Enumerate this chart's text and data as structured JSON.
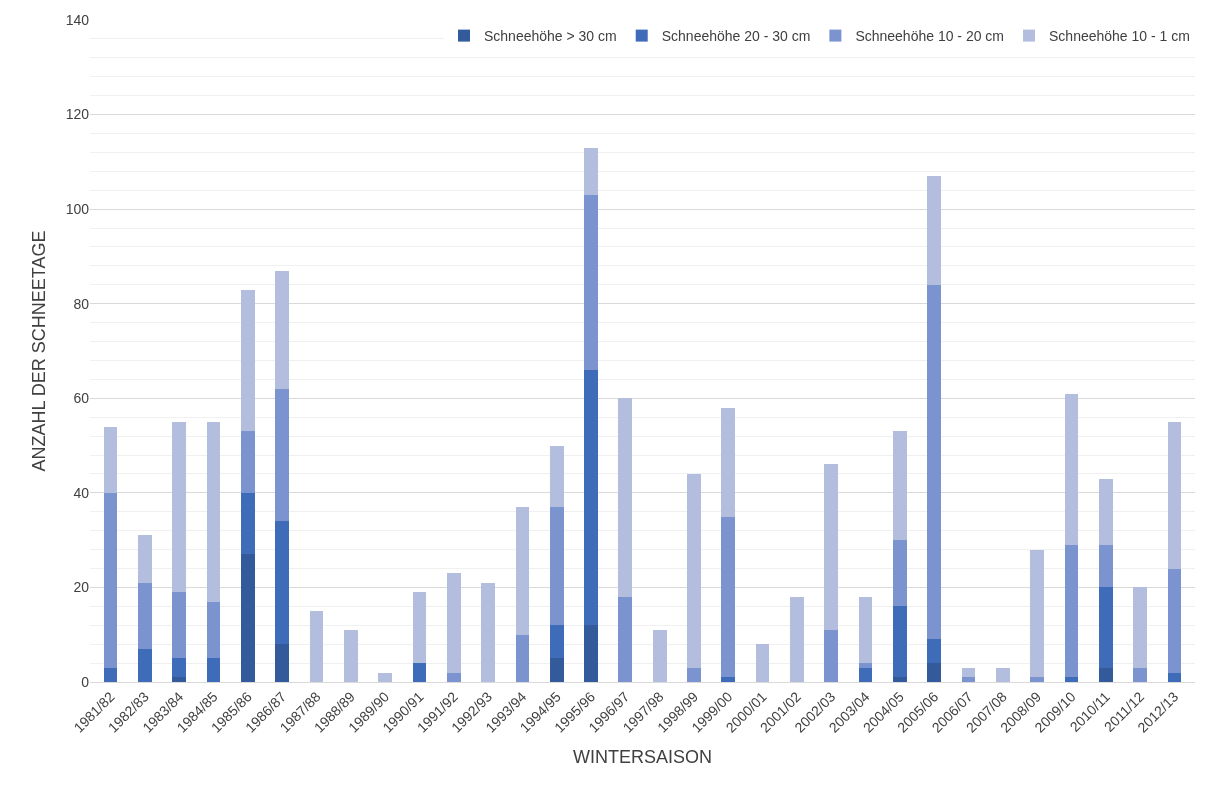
{
  "chart_data": {
    "type": "bar",
    "stacked": true,
    "xlabel": "WINTERSAISON",
    "ylabel": "ANZAHL DER SCHNEETAGE",
    "categories": [
      "1981/82",
      "1982/83",
      "1983/84",
      "1984/85",
      "1985/86",
      "1986/87",
      "1987/88",
      "1988/89",
      "1989/90",
      "1990/91",
      "1991/92",
      "1992/93",
      "1993/94",
      "1994/95",
      "1995/96",
      "1996/97",
      "1997/98",
      "1998/99",
      "1999/00",
      "2000/01",
      "2001/02",
      "2002/03",
      "2003/04",
      "2004/05",
      "2005/06",
      "2006/07",
      "2007/08",
      "2008/09",
      "2009/10",
      "2010/11",
      "2011/12",
      "2012/13"
    ],
    "series": [
      {
        "name": "Schneehöhe > 30 cm",
        "color": "#335a9a",
        "values": [
          0,
          0,
          1,
          0,
          27,
          8,
          0,
          0,
          0,
          0,
          0,
          0,
          0,
          5,
          12,
          0,
          0,
          0,
          0,
          0,
          0,
          0,
          0,
          1,
          4,
          0,
          0,
          0,
          0,
          3,
          0,
          0
        ]
      },
      {
        "name": "Schneehöhe 20 - 30 cm",
        "color": "#3f6cb9",
        "values": [
          3,
          7,
          4,
          5,
          13,
          26,
          0,
          0,
          0,
          4,
          0,
          0,
          0,
          7,
          54,
          0,
          0,
          0,
          1,
          0,
          0,
          0,
          3,
          15,
          5,
          0,
          0,
          0,
          1,
          17,
          0,
          2
        ]
      },
      {
        "name": "Schneehöhe 10 - 20 cm",
        "color": "#7b94cf",
        "values": [
          37,
          14,
          14,
          12,
          13,
          28,
          0,
          0,
          0,
          0,
          2,
          0,
          10,
          25,
          37,
          18,
          0,
          3,
          34,
          0,
          0,
          11,
          1,
          14,
          75,
          1,
          0,
          1,
          28,
          9,
          3,
          22
        ]
      },
      {
        "name": "Schneehöhe 10 - 1 cm",
        "color": "#b3bedf",
        "values": [
          14,
          10,
          36,
          38,
          30,
          25,
          15,
          11,
          2,
          15,
          21,
          21,
          27,
          13,
          10,
          42,
          11,
          41,
          23,
          8,
          18,
          35,
          14,
          23,
          23,
          2,
          3,
          27,
          32,
          14,
          17,
          31
        ]
      }
    ],
    "ylim": [
      0,
      140
    ],
    "yticks": [
      0,
      20,
      40,
      60,
      80,
      100,
      120,
      140
    ],
    "grid": "y",
    "legend": "top right"
  }
}
